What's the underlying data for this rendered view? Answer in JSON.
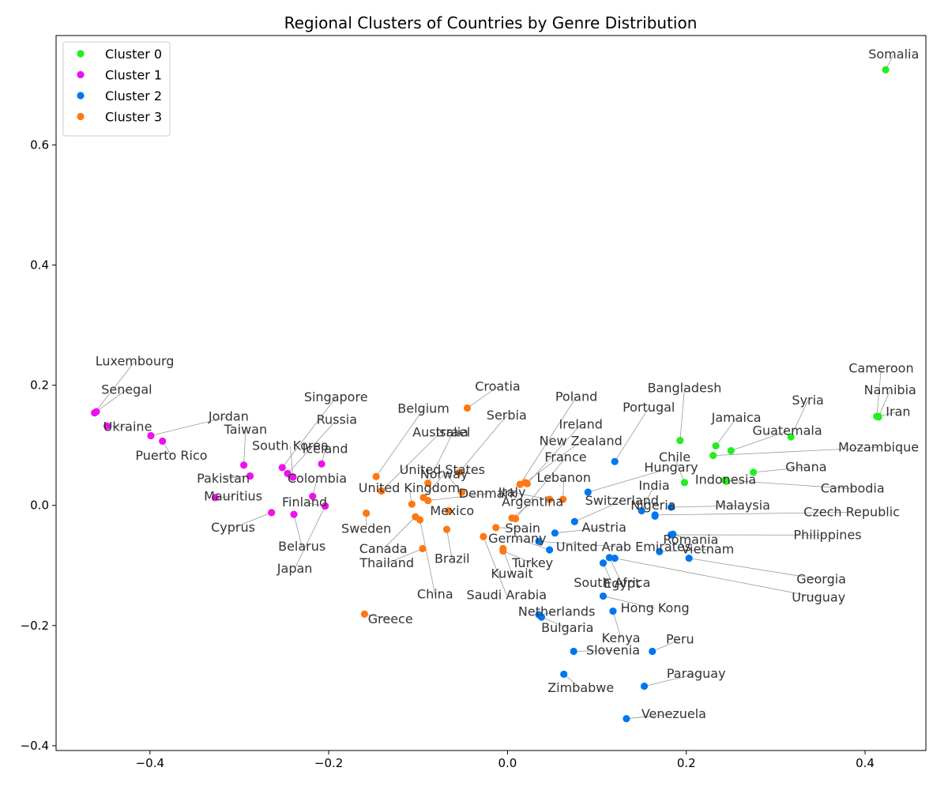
{
  "chart_data": {
    "type": "scatter",
    "title": "Regional Clusters of Countries by Genre Distribution",
    "xlabel": "",
    "ylabel": "",
    "xlim": [
      -0.505,
      0.468
    ],
    "ylim": [
      -0.408,
      0.782
    ],
    "xticks": [
      -0.4,
      -0.2,
      0.0,
      0.2,
      0.4
    ],
    "xtick_labels": [
      "−0.4",
      "−0.2",
      "0.0",
      "0.2",
      "0.4"
    ],
    "yticks": [
      -0.4,
      -0.2,
      0.0,
      0.2,
      0.4,
      0.6
    ],
    "ytick_labels": [
      "−0.4",
      "−0.2",
      "0.0",
      "0.2",
      "0.4",
      "0.6"
    ],
    "grid": false,
    "legend_position": "top-left",
    "label_color": "#333333",
    "leader_line_color": "#999999",
    "series": [
      {
        "name": "Cluster 0",
        "color": "#22ee22",
        "points": [
          {
            "label": "Somalia",
            "x": 0.423,
            "y": 0.725,
            "lx": 0.432,
            "ly": 0.744
          },
          {
            "label": "Cameroon",
            "x": 0.413,
            "y": 0.148,
            "lx": 0.418,
            "ly": 0.221
          },
          {
            "label": "Namibia",
            "x": 0.415,
            "y": 0.147,
            "lx": 0.428,
            "ly": 0.185
          },
          {
            "label": "Iran",
            "x": 0.415,
            "y": 0.148,
            "lx": 0.437,
            "ly": 0.149
          },
          {
            "label": "Bangladesh",
            "x": 0.193,
            "y": 0.108,
            "lx": 0.198,
            "ly": 0.188
          },
          {
            "label": "Syria",
            "x": 0.317,
            "y": 0.114,
            "lx": 0.336,
            "ly": 0.168
          },
          {
            "label": "Jamaica",
            "x": 0.233,
            "y": 0.099,
            "lx": 0.256,
            "ly": 0.139
          },
          {
            "label": "Guatemala",
            "x": 0.25,
            "y": 0.091,
            "lx": 0.313,
            "ly": 0.117
          },
          {
            "label": "Mozambique",
            "x": 0.23,
            "y": 0.083,
            "lx": 0.415,
            "ly": 0.09
          },
          {
            "label": "Chile",
            "x": 0.198,
            "y": 0.038,
            "lx": 0.187,
            "ly": 0.073
          },
          {
            "label": "Ghana",
            "x": 0.275,
            "y": 0.055,
            "lx": 0.334,
            "ly": 0.057
          },
          {
            "label": "Indonesia",
            "x": 0.245,
            "y": 0.04,
            "lx": 0.244,
            "ly": 0.036
          },
          {
            "label": "Cambodia",
            "x": 0.243,
            "y": 0.042,
            "lx": 0.386,
            "ly": 0.021
          }
        ]
      },
      {
        "name": "Cluster 1",
        "color": "#ee11ee",
        "points": [
          {
            "label": "Luxembourg",
            "x": -0.462,
            "y": 0.154,
            "lx": -0.417,
            "ly": 0.233
          },
          {
            "label": "Senegal",
            "x": -0.46,
            "y": 0.156,
            "lx": -0.426,
            "ly": 0.186
          },
          {
            "label": "Ukraine",
            "x": -0.448,
            "y": 0.132,
            "lx": -0.425,
            "ly": 0.124
          },
          {
            "label": "Jordan",
            "x": -0.399,
            "y": 0.116,
            "lx": -0.312,
            "ly": 0.141
          },
          {
            "label": "Puerto Rico",
            "x": -0.386,
            "y": 0.107,
            "lx": -0.376,
            "ly": 0.076
          },
          {
            "label": "Taiwan",
            "x": -0.295,
            "y": 0.067,
            "lx": -0.293,
            "ly": 0.119
          },
          {
            "label": "Singapore",
            "x": -0.252,
            "y": 0.063,
            "lx": -0.192,
            "ly": 0.173
          },
          {
            "label": "Russia",
            "x": -0.246,
            "y": 0.053,
            "lx": -0.191,
            "ly": 0.136
          },
          {
            "label": "South Korea",
            "x": -0.24,
            "y": 0.047,
            "lx": -0.243,
            "ly": 0.092
          },
          {
            "label": "Iceland",
            "x": -0.208,
            "y": 0.069,
            "lx": -0.204,
            "ly": 0.087
          },
          {
            "label": "Pakistan",
            "x": -0.288,
            "y": 0.049,
            "lx": -0.318,
            "ly": 0.038
          },
          {
            "label": "Colombia",
            "x": -0.218,
            "y": 0.015,
            "lx": -0.213,
            "ly": 0.038
          },
          {
            "label": "Mauritius",
            "x": -0.327,
            "y": 0.013,
            "lx": -0.307,
            "ly": 0.008
          },
          {
            "label": "Finland",
            "x": -0.204,
            "y": -0.001,
            "lx": -0.227,
            "ly": -0.002
          },
          {
            "label": "Cyprus",
            "x": -0.264,
            "y": -0.012,
            "lx": -0.307,
            "ly": -0.044
          },
          {
            "label": "Belarus",
            "x": -0.239,
            "y": -0.015,
            "lx": -0.23,
            "ly": -0.075
          },
          {
            "label": "Japan",
            "x": -0.204,
            "y": -0.001,
            "lx": -0.238,
            "ly": -0.112
          }
        ]
      },
      {
        "name": "Cluster 2",
        "color": "#0077ee",
        "points": [
          {
            "label": "Portugal",
            "x": 0.12,
            "y": 0.073,
            "lx": 0.158,
            "ly": 0.156
          },
          {
            "label": "Hungary",
            "x": 0.09,
            "y": 0.022,
            "lx": 0.183,
            "ly": 0.056
          },
          {
            "label": "India",
            "x": 0.15,
            "y": -0.009,
            "lx": 0.164,
            "ly": 0.026
          },
          {
            "label": "Switzerland",
            "x": 0.075,
            "y": -0.027,
            "lx": 0.128,
            "ly": 0.001
          },
          {
            "label": "Nigeria",
            "x": 0.165,
            "y": -0.018,
            "lx": 0.163,
            "ly": -0.007
          },
          {
            "label": "Malaysia",
            "x": 0.183,
            "y": -0.003,
            "lx": 0.263,
            "ly": -0.007
          },
          {
            "label": "Czech Republic",
            "x": 0.165,
            "y": -0.016,
            "lx": 0.385,
            "ly": -0.018
          },
          {
            "label": "Austria",
            "x": 0.053,
            "y": -0.046,
            "lx": 0.108,
            "ly": -0.044
          },
          {
            "label": "Philippines",
            "x": 0.183,
            "y": -0.049,
            "lx": 0.358,
            "ly": -0.056
          },
          {
            "label": "Romania",
            "x": 0.185,
            "y": -0.048,
            "lx": 0.205,
            "ly": -0.064
          },
          {
            "label": "Vietnam",
            "x": 0.17,
            "y": -0.077,
            "lx": 0.224,
            "ly": -0.08
          },
          {
            "label": "United Arab Emirates",
            "x": 0.035,
            "y": -0.06,
            "lx": 0.13,
            "ly": -0.076
          },
          {
            "label": "Germany",
            "x": 0.047,
            "y": -0.074,
            "lx": 0.011,
            "ly": -0.062
          },
          {
            "label": "Uruguay",
            "x": 0.12,
            "y": -0.088,
            "lx": 0.348,
            "ly": -0.16
          },
          {
            "label": "Georgia",
            "x": 0.203,
            "y": -0.088,
            "lx": 0.351,
            "ly": -0.13
          },
          {
            "label": "South Africa",
            "x": 0.107,
            "y": -0.096,
            "lx": 0.117,
            "ly": -0.136
          },
          {
            "label": "Egypt",
            "x": 0.114,
            "y": -0.087,
            "lx": 0.128,
            "ly": -0.137
          },
          {
            "label": "Hong Kong",
            "x": 0.107,
            "y": -0.151,
            "lx": 0.165,
            "ly": -0.178
          },
          {
            "label": "Netherlands",
            "x": 0.035,
            "y": -0.182,
            "lx": 0.055,
            "ly": -0.184
          },
          {
            "label": "Bulgaria",
            "x": 0.038,
            "y": -0.186,
            "lx": 0.067,
            "ly": -0.211
          },
          {
            "label": "Kenya",
            "x": 0.118,
            "y": -0.176,
            "lx": 0.127,
            "ly": -0.228
          },
          {
            "label": "Slovenia",
            "x": 0.074,
            "y": -0.243,
            "lx": 0.118,
            "ly": -0.248
          },
          {
            "label": "Peru",
            "x": 0.162,
            "y": -0.243,
            "lx": 0.193,
            "ly": -0.23
          },
          {
            "label": "Zimbabwe",
            "x": 0.063,
            "y": -0.281,
            "lx": 0.082,
            "ly": -0.311
          },
          {
            "label": "Paraguay",
            "x": 0.153,
            "y": -0.301,
            "lx": 0.211,
            "ly": -0.287
          },
          {
            "label": "Venezuela",
            "x": 0.133,
            "y": -0.355,
            "lx": 0.186,
            "ly": -0.354
          }
        ]
      },
      {
        "name": "Cluster 3",
        "color": "#ff7711",
        "points": [
          {
            "label": "Croatia",
            "x": -0.045,
            "y": 0.162,
            "lx": -0.011,
            "ly": 0.191
          },
          {
            "label": "Belgium",
            "x": -0.147,
            "y": 0.048,
            "lx": -0.094,
            "ly": 0.154
          },
          {
            "label": "Poland",
            "x": 0.014,
            "y": 0.035,
            "lx": 0.077,
            "ly": 0.174
          },
          {
            "label": "Serbia",
            "x": -0.054,
            "y": 0.055,
            "lx": -0.001,
            "ly": 0.143
          },
          {
            "label": "Ireland",
            "x": 0.022,
            "y": 0.036,
            "lx": 0.082,
            "ly": 0.128
          },
          {
            "label": "Australia",
            "x": -0.141,
            "y": 0.024,
            "lx": -0.075,
            "ly": 0.115
          },
          {
            "label": "Israel",
            "x": -0.089,
            "y": 0.037,
            "lx": -0.061,
            "ly": 0.115
          },
          {
            "label": "New Zealand",
            "x": 0.02,
            "y": 0.038,
            "lx": 0.082,
            "ly": 0.1
          },
          {
            "label": "France",
            "x": 0.009,
            "y": -0.022,
            "lx": 0.065,
            "ly": 0.073
          },
          {
            "label": "United States",
            "x": -0.051,
            "y": 0.022,
            "lx": -0.073,
            "ly": 0.052
          },
          {
            "label": "Norway",
            "x": -0.094,
            "y": 0.013,
            "lx": -0.071,
            "ly": 0.045
          },
          {
            "label": "Lebanon",
            "x": 0.062,
            "y": 0.01,
            "lx": 0.063,
            "ly": 0.039
          },
          {
            "label": "United Kingdom",
            "x": -0.107,
            "y": 0.002,
            "lx": -0.11,
            "ly": 0.022
          },
          {
            "label": "Italy",
            "x": 0.047,
            "y": 0.01,
            "lx": 0.005,
            "ly": 0.015
          },
          {
            "label": "Denmark",
            "x": -0.089,
            "y": 0.008,
            "lx": -0.022,
            "ly": 0.013
          },
          {
            "label": "Argentina",
            "x": 0.005,
            "y": -0.021,
            "lx": 0.028,
            "ly": -0.001
          },
          {
            "label": "Mexico",
            "x": -0.066,
            "y": -0.009,
            "lx": -0.062,
            "ly": -0.016
          },
          {
            "label": "Sweden",
            "x": -0.158,
            "y": -0.013,
            "lx": -0.158,
            "ly": -0.046
          },
          {
            "label": "Spain",
            "x": -0.013,
            "y": -0.037,
            "lx": 0.017,
            "ly": -0.045
          },
          {
            "label": "Canada",
            "x": -0.103,
            "y": -0.019,
            "lx": -0.139,
            "ly": -0.079
          },
          {
            "label": "Turkey",
            "x": -0.005,
            "y": -0.076,
            "lx": 0.028,
            "ly": -0.103
          },
          {
            "label": "Brazil",
            "x": -0.068,
            "y": -0.04,
            "lx": -0.062,
            "ly": -0.096
          },
          {
            "label": "Thailand",
            "x": -0.095,
            "y": -0.072,
            "lx": -0.135,
            "ly": -0.103
          },
          {
            "label": "Kuwait",
            "x": -0.005,
            "y": -0.072,
            "lx": 0.005,
            "ly": -0.121
          },
          {
            "label": "China",
            "x": -0.098,
            "y": -0.024,
            "lx": -0.081,
            "ly": -0.155
          },
          {
            "label": "Saudi Arabia",
            "x": -0.027,
            "y": -0.052,
            "lx": -0.001,
            "ly": -0.156
          },
          {
            "label": "Greece",
            "x": -0.16,
            "y": -0.181,
            "lx": -0.131,
            "ly": -0.196
          }
        ]
      }
    ]
  }
}
